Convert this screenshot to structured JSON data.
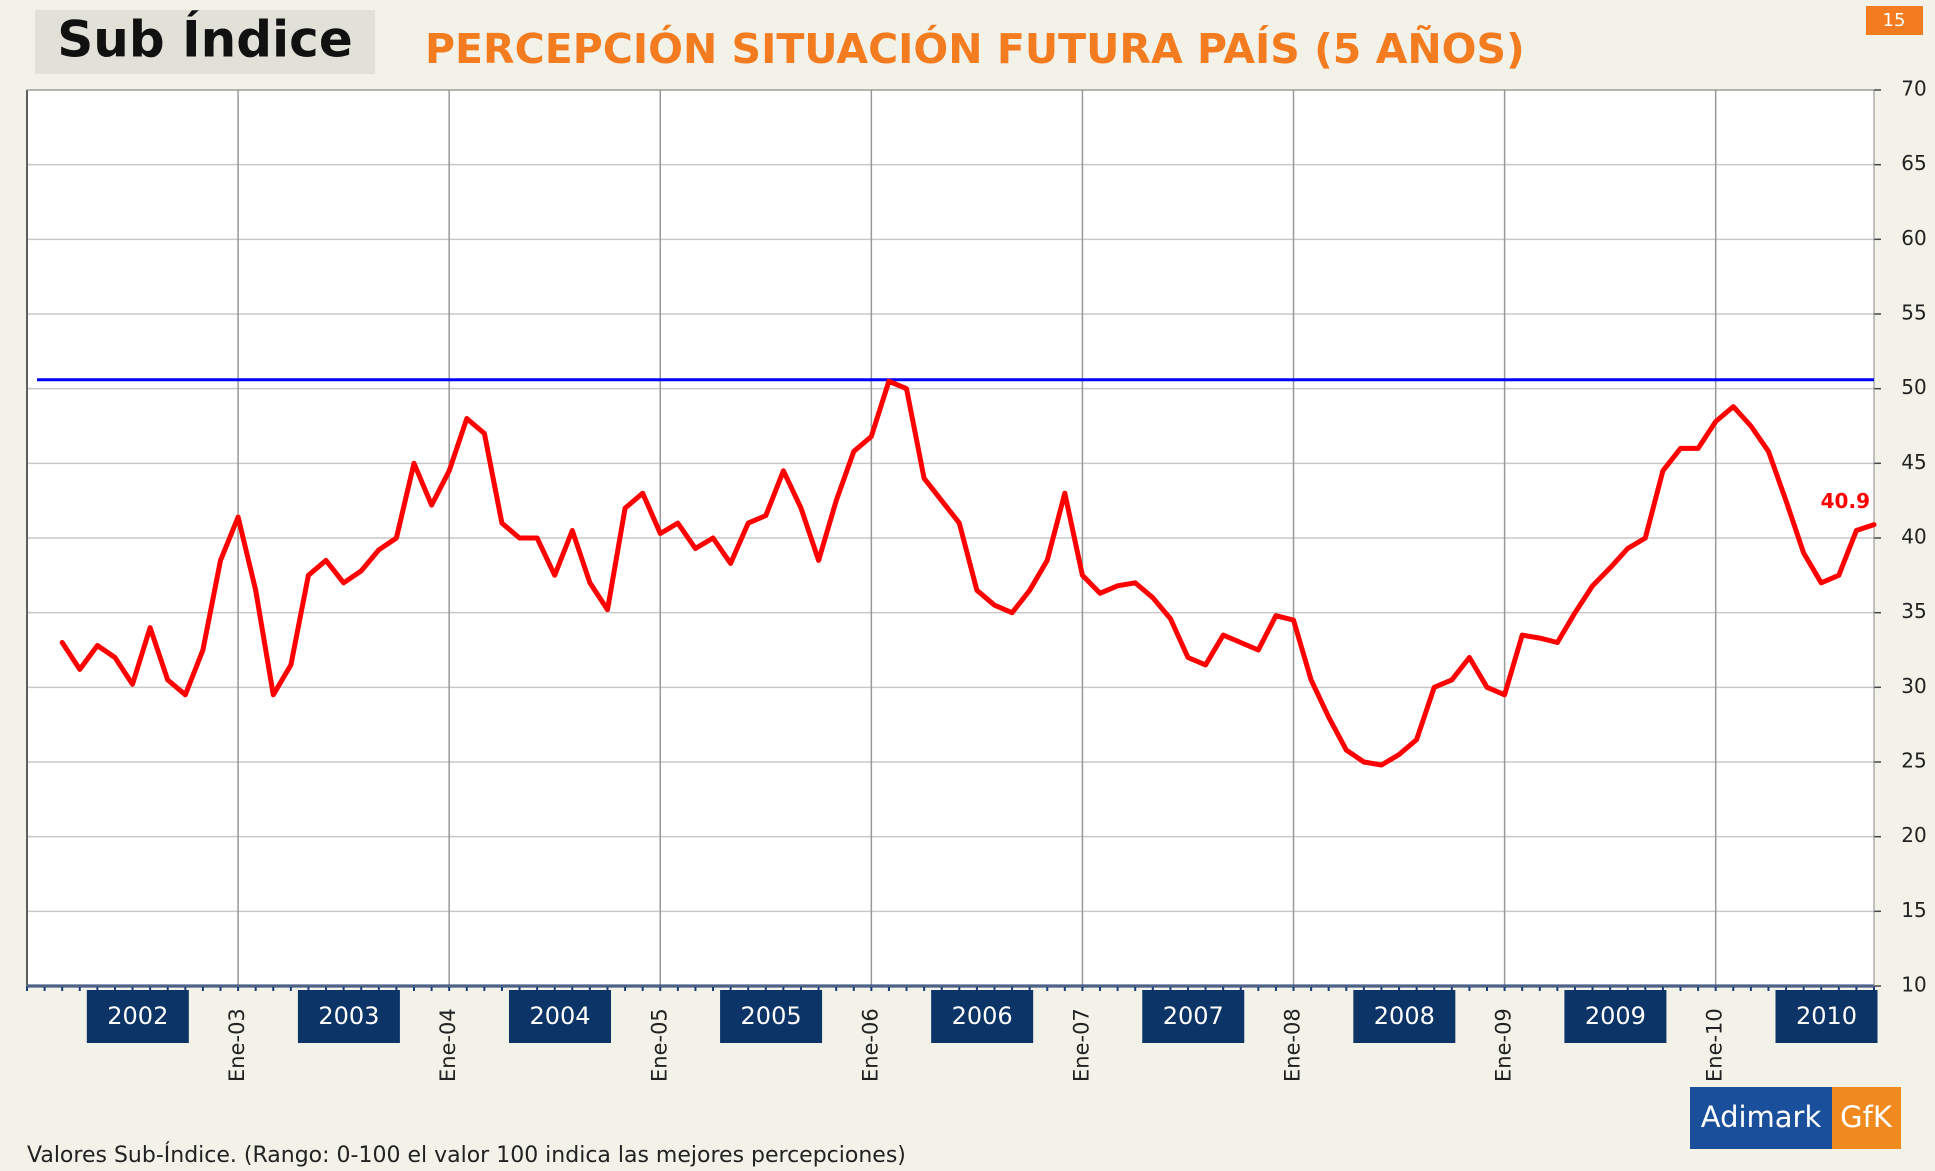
{
  "header": {
    "tag": "Sub Índice",
    "page": "15"
  },
  "chart_data": {
    "type": "line",
    "title": "PERCEPCIÓN SITUACIÓN FUTURA PAÍS (5 AÑOS)",
    "categories": [
      null,
      null,
      null,
      null,
      null,
      null,
      null,
      null,
      null,
      null,
      null,
      null,
      "Ene-03",
      null,
      null,
      null,
      null,
      null,
      null,
      null,
      null,
      null,
      null,
      null,
      "Ene-04",
      null,
      null,
      null,
      null,
      null,
      null,
      null,
      null,
      null,
      null,
      null,
      "Ene-05",
      null,
      null,
      null,
      null,
      null,
      null,
      null,
      null,
      null,
      null,
      null,
      "Ene-06",
      null,
      null,
      null,
      null,
      null,
      null,
      null,
      null,
      null,
      null,
      null,
      "Ene-07",
      null,
      null,
      null,
      null,
      null,
      null,
      null,
      null,
      null,
      null,
      null,
      "Ene-08",
      null,
      null,
      null,
      null,
      null,
      null,
      null,
      null,
      null,
      null,
      null,
      "Ene-09",
      null,
      null,
      null,
      null,
      null,
      null,
      null,
      null,
      null,
      null,
      null,
      "Ene-10",
      null,
      null,
      null,
      null,
      null,
      null,
      null,
      null,
      null
    ],
    "values": [
      null,
      null,
      33,
      31.2,
      32.8,
      32,
      30.2,
      34,
      30.5,
      29.5,
      32.5,
      38.5,
      41.4,
      36.5,
      29.5,
      31.5,
      37.5,
      38.5,
      37,
      37.8,
      39.2,
      40,
      45,
      42.2,
      44.5,
      48,
      47,
      41,
      40,
      40,
      37.5,
      40.5,
      37,
      35.2,
      42,
      43,
      40.3,
      41,
      39.3,
      40,
      38.3,
      41,
      41.5,
      44.5,
      42,
      38.5,
      42.5,
      45.8,
      46.8,
      50.5,
      50,
      44,
      42.5,
      41,
      36.5,
      35.5,
      35,
      36.5,
      38.5,
      43,
      37.5,
      36.3,
      36.8,
      37,
      36,
      34.6,
      32,
      31.5,
      33.5,
      33,
      32.5,
      34.8,
      34.5,
      30.5,
      28,
      25.8,
      25,
      24.8,
      25.5,
      26.5,
      30,
      30.5,
      32,
      30,
      29.5,
      33.5,
      33.3,
      33,
      35,
      36.8,
      38,
      39.3,
      40,
      44.5,
      46,
      46,
      47.8,
      48.8,
      47.5,
      45.8,
      42.5,
      39,
      37,
      37.5,
      40.5,
      40.9
    ],
    "color": "#ff0000",
    "label_last": true,
    "reference_line": {
      "value": 50.6,
      "color": "#0000ff"
    },
    "year_labels": [
      "2002",
      "2003",
      "2004",
      "2005",
      "2006",
      "2007",
      "2008",
      "2009",
      "2010"
    ],
    "ylim": [
      10,
      70
    ],
    "yticks": [
      10,
      15,
      20,
      25,
      30,
      35,
      40,
      45,
      50,
      55,
      60,
      65,
      70
    ],
    "grid": true
  },
  "footer": "Valores Sub-Índice. (Rango: 0-100 el valor 100 indica las mejores percepciones)",
  "logo": {
    "left": "Adimark",
    "right": "GfK"
  }
}
